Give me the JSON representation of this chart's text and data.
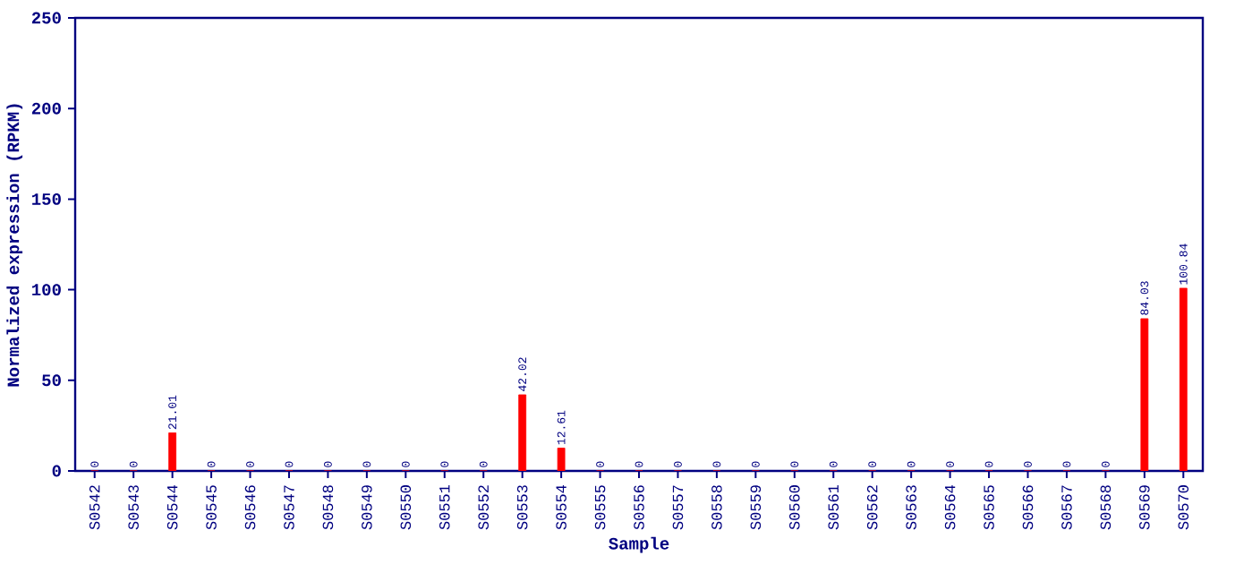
{
  "chart_data": {
    "type": "bar",
    "xlabel": "Sample",
    "ylabel": "Normalized expression (RPKM)",
    "categories": [
      "S0542",
      "S0543",
      "S0544",
      "S0545",
      "S0546",
      "S0547",
      "S0548",
      "S0549",
      "S0550",
      "S0551",
      "S0552",
      "S0553",
      "S0554",
      "S0555",
      "S0556",
      "S0557",
      "S0558",
      "S0559",
      "S0560",
      "S0561",
      "S0562",
      "S0563",
      "S0564",
      "S0565",
      "S0566",
      "S0567",
      "S0568",
      "S0569",
      "S0570"
    ],
    "values": [
      0,
      0,
      21.01,
      0,
      0,
      0,
      0,
      0,
      0,
      0,
      0,
      42.02,
      12.61,
      0,
      0,
      0,
      0,
      0,
      0,
      0,
      0,
      0,
      0,
      0,
      0,
      0,
      0,
      84.03,
      100.84
    ],
    "color": "#ff0000",
    "ylim": [
      0,
      250
    ],
    "yticks": [
      0,
      50,
      100,
      150,
      200,
      250
    ],
    "data_labels": true
  }
}
